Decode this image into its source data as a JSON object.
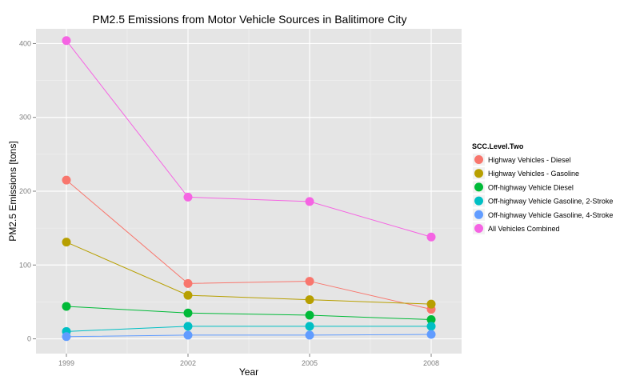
{
  "chart_data": {
    "type": "line",
    "title": "PM2.5 Emissions from Motor Vehicle Sources in Balitimore City",
    "xlabel": "Year",
    "ylabel": "PM2.5 Emissions [tons]",
    "x": [
      1999,
      2002,
      2005,
      2008
    ],
    "x_ticks": [
      "1999",
      "2002",
      "2005",
      "2008"
    ],
    "y_ticks": [
      "0",
      "100",
      "200",
      "300",
      "400"
    ],
    "ylim": [
      -20,
      420
    ],
    "grid": true,
    "legend": {
      "title": "SCC.Level.Two",
      "placement": "right"
    },
    "series": [
      {
        "name": "Highway Vehicles - Diesel",
        "color": "#F8766D",
        "values": [
          215,
          75,
          78,
          40
        ]
      },
      {
        "name": "Highway Vehicles - Gasoline",
        "color": "#B79F00",
        "values": [
          131,
          59,
          53,
          47
        ]
      },
      {
        "name": "Off-highway Vehicle Diesel",
        "color": "#00BA38",
        "values": [
          44,
          35,
          32,
          26
        ]
      },
      {
        "name": "Off-highway Vehicle Gasoline, 2-Stroke",
        "color": "#00BFC4",
        "values": [
          10,
          17,
          17,
          17
        ]
      },
      {
        "name": "Off-highway Vehicle Gasoline, 4-Stroke",
        "color": "#619CFF",
        "values": [
          3,
          5,
          5,
          6
        ]
      },
      {
        "name": "All Vehicles Combined",
        "color": "#F564E3",
        "values": [
          404,
          192,
          186,
          138
        ]
      }
    ]
  }
}
